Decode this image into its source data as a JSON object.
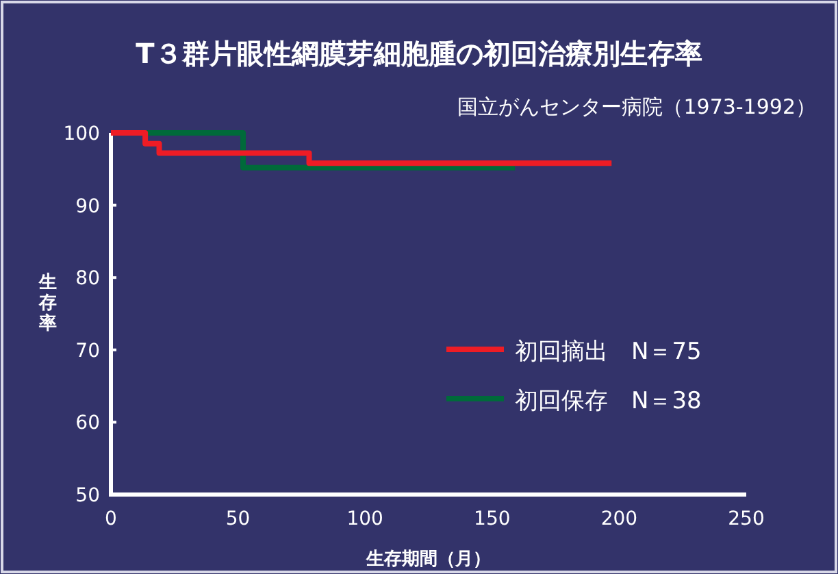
{
  "chart_data": {
    "type": "step",
    "title": "T３群片眼性網膜芽細胞腫の初回治療別生存率",
    "subtitle": "国立がんセンター病院（1973-1992）",
    "xlabel": "生存期間（月）",
    "ylabel": "生存率",
    "xlim": [
      0,
      250
    ],
    "xticks": [
      0,
      50,
      100,
      150,
      200,
      250
    ],
    "ylim": [
      50,
      100
    ],
    "yticks": [
      50,
      60,
      70,
      80,
      90,
      100
    ],
    "grid": false,
    "legend": "right",
    "marker": "none",
    "line_style": "solid",
    "series": [
      {
        "name": "初回摘出　N＝75",
        "color": "#ee1c25",
        "x": [
          0,
          13.5,
          19,
          78,
          197
        ],
        "values": [
          100,
          98.5,
          97.2,
          95.8,
          95.8
        ]
      },
      {
        "name": "初回保存　N＝38",
        "color": "#006a3a",
        "x": [
          0,
          52,
          159
        ],
        "values": [
          100,
          95.2,
          95.2
        ]
      }
    ]
  }
}
